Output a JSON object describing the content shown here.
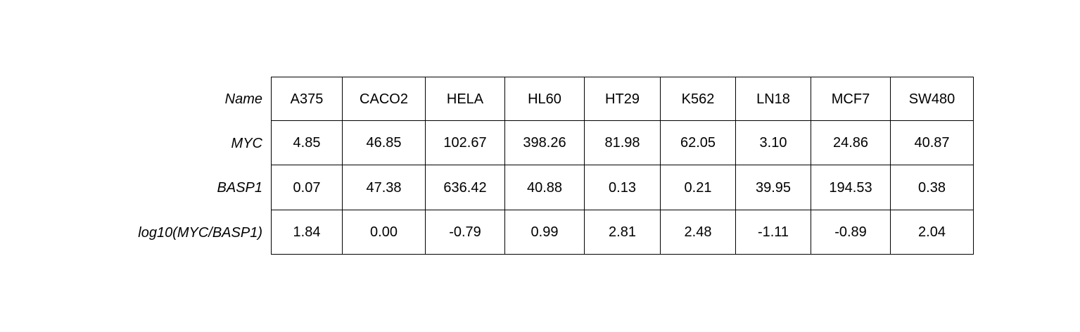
{
  "chart_data": {
    "type": "table",
    "row_labels": [
      "Name",
      "MYC",
      "BASP1",
      "log10(MYC/BASP1)"
    ],
    "columns": [
      "A375",
      "CACO2",
      "HELA",
      "HL60",
      "HT29",
      "K562",
      "LN18",
      "MCF7",
      "SW480"
    ],
    "rows": [
      [
        "4.85",
        "46.85",
        "102.67",
        "398.26",
        "81.98",
        "62.05",
        "3.10",
        "24.86",
        "40.87"
      ],
      [
        "0.07",
        "47.38",
        "636.42",
        "40.88",
        "0.13",
        "0.21",
        "39.95",
        "194.53",
        "0.38"
      ],
      [
        "1.84",
        "0.00",
        "-0.79",
        "0.99",
        "2.81",
        "2.48",
        "-1.11",
        "-0.89",
        "2.04"
      ]
    ]
  }
}
